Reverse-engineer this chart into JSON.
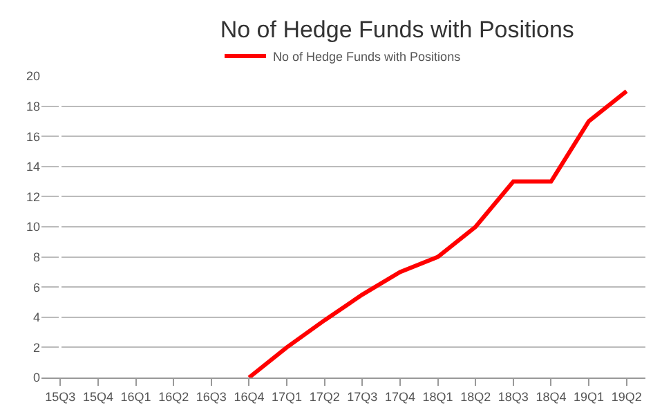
{
  "chart_data": {
    "type": "line",
    "title": "No of Hedge Funds with Positions",
    "categories": [
      "15Q3",
      "15Q4",
      "16Q1",
      "16Q2",
      "16Q3",
      "16Q4",
      "17Q1",
      "17Q2",
      "17Q3",
      "17Q4",
      "18Q1",
      "18Q2",
      "18Q3",
      "18Q4",
      "19Q1",
      "19Q2"
    ],
    "series": [
      {
        "name": "No of Hedge Funds with Positions",
        "color": "#ff0000",
        "values": [
          null,
          null,
          null,
          null,
          null,
          0,
          2,
          3.8,
          5.5,
          7,
          8,
          10,
          13,
          13,
          17,
          19
        ]
      }
    ],
    "ylim": [
      0,
      20
    ],
    "yticks": [
      0,
      2,
      4,
      6,
      8,
      10,
      12,
      14,
      16,
      18,
      20
    ],
    "grid": "y",
    "legend": "top",
    "marker": "none",
    "line_style": "solid"
  }
}
